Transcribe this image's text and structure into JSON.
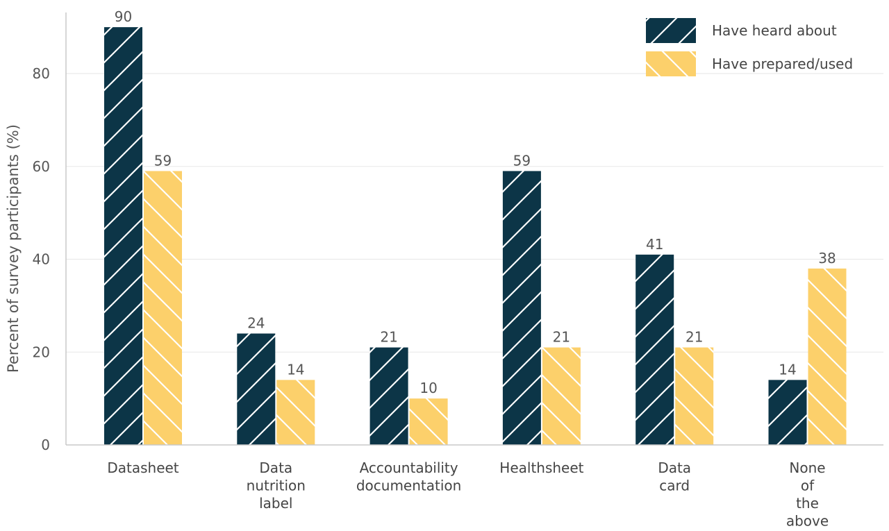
{
  "chart_data": {
    "type": "bar",
    "title": "",
    "xlabel": "",
    "ylabel": "Percent of survey participants (%)",
    "ylim": [
      0,
      95
    ],
    "yticks": [
      0,
      20,
      40,
      60,
      80
    ],
    "grid": true,
    "legend_position": "top-right",
    "categories": [
      [
        "Datasheet"
      ],
      [
        "Data",
        "nutrition",
        "label"
      ],
      [
        "Accountability",
        "documentation"
      ],
      [
        "Healthsheet"
      ],
      [
        "Data",
        "card"
      ],
      [
        "None",
        "of",
        "the",
        "above"
      ]
    ],
    "series": [
      {
        "name": "Have heard about",
        "color": "#0c3547",
        "hatch": "forward-diagonal",
        "values": [
          90,
          24,
          21,
          59,
          41,
          14
        ]
      },
      {
        "name": "Have prepared/used",
        "color": "#fcd06b",
        "hatch": "backward-diagonal",
        "values": [
          59,
          14,
          10,
          21,
          21,
          38
        ]
      }
    ]
  }
}
